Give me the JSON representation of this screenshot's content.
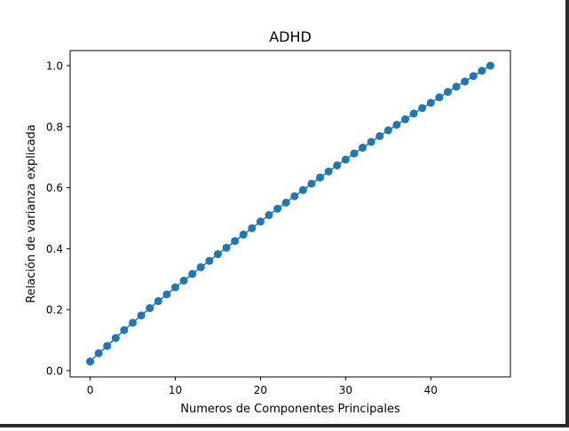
{
  "chart_data": {
    "type": "scatter",
    "title": "ADHD",
    "xlabel": "Numeros de Componentes Principales",
    "ylabel": "Relación de varianza explicada",
    "xlim": [
      -2.35,
      49.35
    ],
    "ylim": [
      -0.0205,
      1.0495
    ],
    "xticks": [
      0,
      10,
      20,
      30,
      40
    ],
    "yticks": [
      0.0,
      0.2,
      0.4,
      0.6,
      0.8,
      1.0
    ],
    "xtick_labels": [
      "0",
      "10",
      "20",
      "30",
      "40"
    ],
    "ytick_labels": [
      "0.0",
      "0.2",
      "0.4",
      "0.6",
      "0.8",
      "1.0"
    ],
    "grid": false,
    "marker_color": "#1f77b4",
    "series": [
      {
        "line": true,
        "marker": "circle",
        "x": [
          0,
          1,
          2,
          3,
          4,
          5,
          6,
          7,
          8,
          9,
          10,
          11,
          12,
          13,
          14,
          15,
          16,
          17,
          18,
          19,
          20,
          21,
          22,
          23,
          24,
          25,
          26,
          27,
          28,
          29,
          30,
          31,
          32,
          33,
          34,
          35,
          36,
          37,
          38,
          39,
          40,
          41,
          42,
          43,
          44,
          45,
          46,
          47
        ],
        "y": [
          0.03,
          0.057,
          0.081,
          0.107,
          0.133,
          0.157,
          0.181,
          0.205,
          0.228,
          0.25,
          0.273,
          0.295,
          0.317,
          0.339,
          0.36,
          0.382,
          0.403,
          0.425,
          0.446,
          0.467,
          0.489,
          0.51,
          0.531,
          0.551,
          0.572,
          0.592,
          0.613,
          0.633,
          0.653,
          0.673,
          0.692,
          0.712,
          0.731,
          0.75,
          0.769,
          0.788,
          0.806,
          0.824,
          0.843,
          0.861,
          0.878,
          0.896,
          0.914,
          0.931,
          0.948,
          0.966,
          0.983,
          1.0
        ]
      }
    ]
  }
}
